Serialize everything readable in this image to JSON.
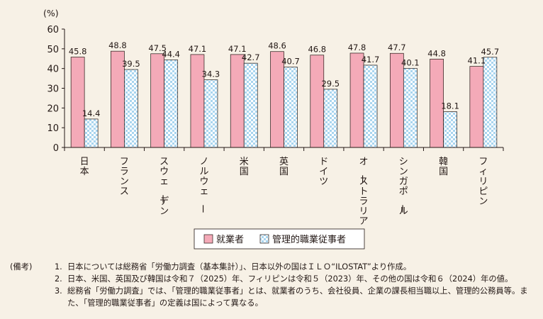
{
  "chart_data": {
    "type": "bar",
    "unit_label": "(%)",
    "ylim": [
      0,
      60
    ],
    "yticks": [
      0,
      10,
      20,
      30,
      40,
      50,
      60
    ],
    "categories": [
      "日本",
      "フランス",
      "スウェーデン",
      "ノルウェー",
      "米国",
      "英国",
      "ドイツ",
      "オーストラリア",
      "シンガポール",
      "韓国",
      "フィリピン"
    ],
    "series": [
      {
        "name": "就業者",
        "color": "#f4aab8",
        "values": [
          45.8,
          48.8,
          47.5,
          47.1,
          47.1,
          48.6,
          46.8,
          47.8,
          47.7,
          44.8,
          41.1
        ]
      },
      {
        "name": "管理的職業従事者",
        "color": "#a9d5ef",
        "values": [
          14.4,
          39.5,
          44.4,
          34.3,
          42.7,
          40.7,
          29.5,
          41.7,
          40.1,
          18.1,
          45.7
        ]
      }
    ],
    "grid": false,
    "legend_position": "bottom"
  },
  "notes": {
    "label": "(備考)",
    "items": [
      {
        "num": "1.",
        "text": "日本については総務省「労働力調査（基本集計）」、日本以外の国はＩＬＯ“ILOSTAT”より作成。"
      },
      {
        "num": "2.",
        "text": "日本、米国、英国及び韓国は令和７（2025）年、フィリピンは令和５（2023）年、その他の国は令和６（2024）年の値。"
      },
      {
        "num": "3.",
        "text": "総務省「労働力調査」では、「管理的職業従事者」とは、就業者のうち、会社役員、企業の課長相当職以上、管理的公務員等。また、「管理的職業従事者」の定義は国によって異なる。"
      }
    ]
  }
}
